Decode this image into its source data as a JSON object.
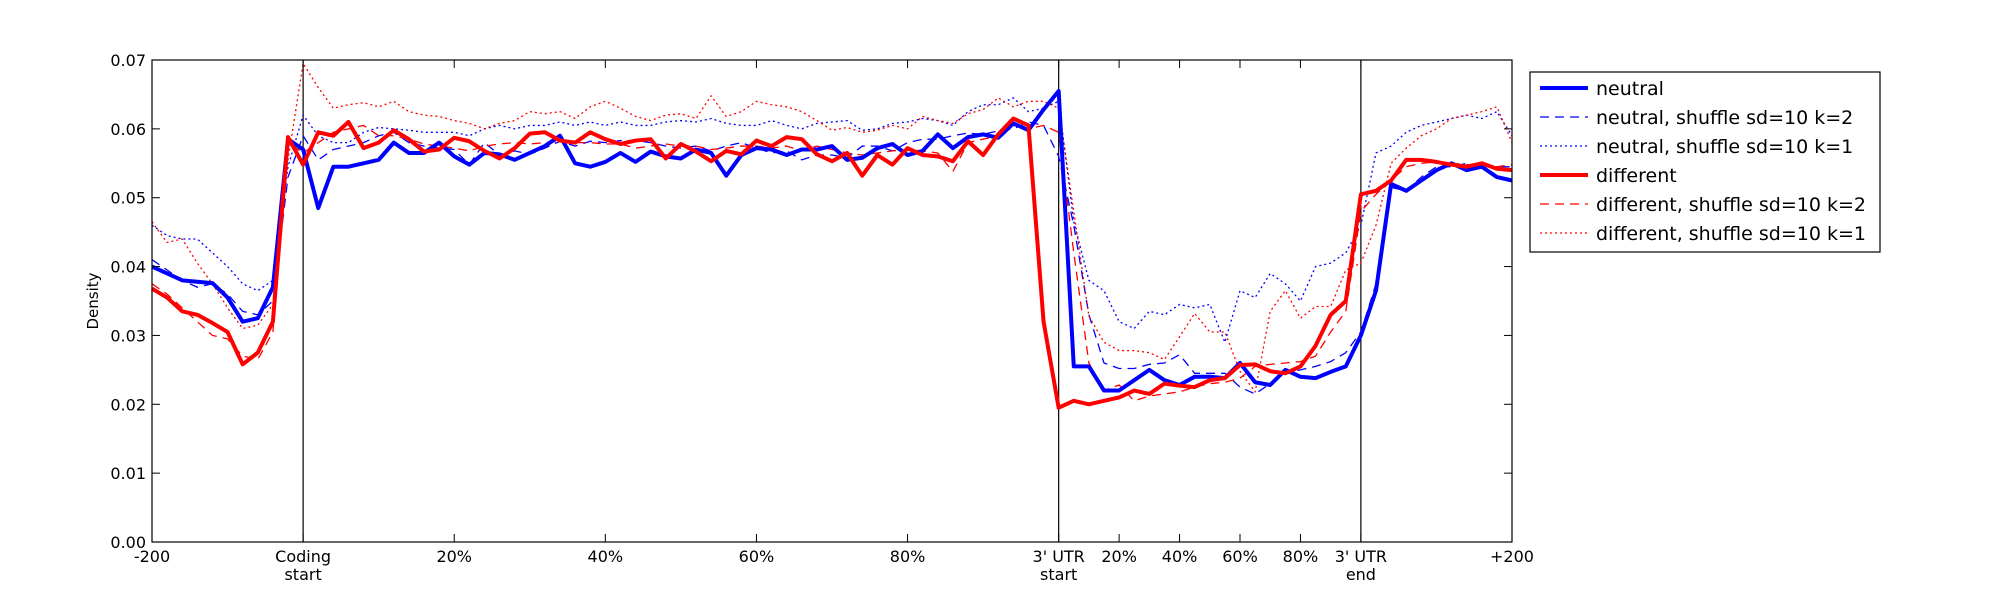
{
  "chart_data": {
    "type": "line",
    "title": "",
    "xlabel": "",
    "ylabel": "Density",
    "ylim": [
      0,
      0.07
    ],
    "y_ticks": [
      0.0,
      0.01,
      0.02,
      0.03,
      0.04,
      0.05,
      0.06,
      0.07
    ],
    "y_tick_labels": [
      "0.00",
      "0.01",
      "0.02",
      "0.03",
      "0.04",
      "0.05",
      "0.06",
      "0.07"
    ],
    "x_tick_labels": [
      {
        "label": "-200",
        "sub": "",
        "at": 0
      },
      {
        "label": "Coding",
        "sub": "start",
        "at": 10
      },
      {
        "label": "20%",
        "sub": "",
        "at": 20
      },
      {
        "label": "40%",
        "sub": "",
        "at": 30
      },
      {
        "label": "60%",
        "sub": "",
        "at": 40
      },
      {
        "label": "80%",
        "sub": "",
        "at": 50
      },
      {
        "label": "3' UTR",
        "sub": "start",
        "at": 60
      },
      {
        "label": "20%",
        "sub": "",
        "at": 64
      },
      {
        "label": "40%",
        "sub": "",
        "at": 68
      },
      {
        "label": "60%",
        "sub": "",
        "at": 72
      },
      {
        "label": "80%",
        "sub": "",
        "at": 76
      },
      {
        "label": "3' UTR",
        "sub": "end",
        "at": 80
      },
      {
        "label": "+200",
        "sub": "",
        "at": 90
      }
    ],
    "xlim": [
      0,
      90
    ],
    "region_boundaries": [
      10,
      60,
      80
    ],
    "legend_position": "outside-right",
    "series": [
      {
        "name": "neutral",
        "color": "#0000ff",
        "style": "solid",
        "y": [
          0.04,
          0.039,
          0.038,
          0.0378,
          0.0376,
          0.0355,
          0.032,
          0.0325,
          0.037,
          0.0585,
          0.057,
          0.0485,
          0.0545,
          0.0545,
          0.055,
          0.0555,
          0.058,
          0.0565,
          0.0565,
          0.058,
          0.056,
          0.0548,
          0.0565,
          0.0563,
          0.0555,
          0.0565,
          0.0575,
          0.059,
          0.055,
          0.0545,
          0.0552,
          0.0565,
          0.0552,
          0.0567,
          0.056,
          0.0557,
          0.057,
          0.0565,
          0.0532,
          0.0562,
          0.0572,
          0.057,
          0.0562,
          0.057,
          0.057,
          0.0575,
          0.0555,
          0.0558,
          0.0572,
          0.0578,
          0.0562,
          0.0568,
          0.0592,
          0.0572,
          0.0588,
          0.0592,
          0.0587,
          0.0608,
          0.0598,
          0.0628,
          0.0655,
          0.0255,
          0.0255,
          0.022,
          0.022,
          0.0235,
          0.025,
          0.0235,
          0.0228,
          0.024,
          0.024,
          0.0238,
          0.026,
          0.0232,
          0.0228,
          0.025,
          0.024,
          0.0238,
          0.0247,
          0.0255,
          0.03,
          0.0365,
          0.052,
          0.051,
          0.0525,
          0.054,
          0.055,
          0.054,
          0.0545,
          0.053,
          0.0525
        ]
      },
      {
        "name": "neutral, shuffle sd=10 k=2",
        "color": "#0000ff",
        "style": "dashed",
        "y": [
          0.041,
          0.0395,
          0.038,
          0.037,
          0.0375,
          0.036,
          0.0335,
          0.033,
          0.035,
          0.053,
          0.059,
          0.0555,
          0.057,
          0.0575,
          0.058,
          0.059,
          0.0595,
          0.058,
          0.0575,
          0.0572,
          0.057,
          0.0548,
          0.058,
          0.0562,
          0.0568,
          0.0563,
          0.0572,
          0.0582,
          0.0575,
          0.0582,
          0.058,
          0.0583,
          0.0583,
          0.058,
          0.0575,
          0.0572,
          0.0575,
          0.0568,
          0.0575,
          0.058,
          0.0572,
          0.0565,
          0.0568,
          0.0555,
          0.0562,
          0.0562,
          0.0558,
          0.0575,
          0.0575,
          0.0568,
          0.058,
          0.0585,
          0.0585,
          0.059,
          0.0594,
          0.0592,
          0.0597,
          0.06,
          0.061,
          0.0605,
          0.056,
          0.046,
          0.033,
          0.026,
          0.0252,
          0.0252,
          0.0258,
          0.026,
          0.0272,
          0.0245,
          0.0245,
          0.0245,
          0.0225,
          0.0215,
          0.023,
          0.0245,
          0.025,
          0.0255,
          0.0262,
          0.0275,
          0.0305,
          0.0375,
          0.0515,
          0.051,
          0.053,
          0.0545,
          0.0545,
          0.055,
          0.0545,
          0.0545,
          0.0545
        ]
      },
      {
        "name": "neutral, shuffle sd=10 k=1",
        "color": "#0000ff",
        "style": "dotted",
        "y": [
          0.046,
          0.0445,
          0.044,
          0.044,
          0.042,
          0.04,
          0.0375,
          0.0365,
          0.038,
          0.0545,
          0.062,
          0.059,
          0.058,
          0.058,
          0.0595,
          0.0602,
          0.06,
          0.0598,
          0.0595,
          0.0595,
          0.0595,
          0.059,
          0.06,
          0.0605,
          0.06,
          0.0605,
          0.0605,
          0.061,
          0.0605,
          0.061,
          0.0605,
          0.061,
          0.0605,
          0.0605,
          0.061,
          0.0612,
          0.061,
          0.0615,
          0.0608,
          0.0605,
          0.0605,
          0.0612,
          0.0605,
          0.06,
          0.0608,
          0.061,
          0.0612,
          0.0598,
          0.06,
          0.0608,
          0.061,
          0.0615,
          0.0612,
          0.0605,
          0.0625,
          0.0635,
          0.0635,
          0.0645,
          0.0625,
          0.063,
          0.064,
          0.0465,
          0.038,
          0.0365,
          0.032,
          0.031,
          0.0335,
          0.033,
          0.0345,
          0.034,
          0.0345,
          0.029,
          0.0365,
          0.0355,
          0.039,
          0.0375,
          0.035,
          0.04,
          0.0405,
          0.042,
          0.046,
          0.0565,
          0.0575,
          0.0595,
          0.0605,
          0.061,
          0.0615,
          0.062,
          0.0615,
          0.0625,
          0.059
        ]
      },
      {
        "name": "different",
        "color": "#ff0000",
        "style": "solid",
        "y": [
          0.0368,
          0.0355,
          0.0335,
          0.033,
          0.0318,
          0.0305,
          0.0258,
          0.0275,
          0.032,
          0.0588,
          0.0548,
          0.0595,
          0.059,
          0.061,
          0.0572,
          0.058,
          0.0598,
          0.0585,
          0.0567,
          0.057,
          0.0587,
          0.0582,
          0.0568,
          0.0557,
          0.0572,
          0.0593,
          0.0595,
          0.0583,
          0.058,
          0.0595,
          0.0585,
          0.0578,
          0.0583,
          0.0585,
          0.0557,
          0.0578,
          0.0567,
          0.0553,
          0.0568,
          0.0563,
          0.0583,
          0.0575,
          0.0588,
          0.0585,
          0.0563,
          0.0553,
          0.0565,
          0.0532,
          0.0562,
          0.0548,
          0.0572,
          0.0562,
          0.056,
          0.0553,
          0.0582,
          0.0562,
          0.0592,
          0.0615,
          0.0605,
          0.032,
          0.0195,
          0.0205,
          0.02,
          0.0205,
          0.021,
          0.022,
          0.0215,
          0.023,
          0.0227,
          0.0225,
          0.0235,
          0.0238,
          0.0257,
          0.0258,
          0.0248,
          0.0245,
          0.0255,
          0.0285,
          0.033,
          0.035,
          0.0505,
          0.051,
          0.0525,
          0.0555,
          0.0555,
          0.0552,
          0.0548,
          0.0545,
          0.055,
          0.0542,
          0.054
        ]
      },
      {
        "name": "different, shuffle sd=10 k=2",
        "color": "#ff0000",
        "style": "dashed",
        "y": [
          0.0375,
          0.036,
          0.034,
          0.032,
          0.03,
          0.0295,
          0.027,
          0.0265,
          0.0305,
          0.058,
          0.0565,
          0.058,
          0.0595,
          0.06,
          0.0605,
          0.059,
          0.059,
          0.0585,
          0.0578,
          0.0575,
          0.0572,
          0.0568,
          0.0575,
          0.0578,
          0.058,
          0.0578,
          0.058,
          0.0582,
          0.058,
          0.058,
          0.0578,
          0.0578,
          0.0572,
          0.0575,
          0.0578,
          0.0575,
          0.0575,
          0.057,
          0.0572,
          0.0575,
          0.0575,
          0.0572,
          0.0575,
          0.0568,
          0.0575,
          0.057,
          0.0565,
          0.0562,
          0.0565,
          0.0568,
          0.057,
          0.0568,
          0.0565,
          0.0538,
          0.058,
          0.0585,
          0.059,
          0.0605,
          0.06,
          0.0605,
          0.0595,
          0.042,
          0.026,
          0.022,
          0.0228,
          0.0205,
          0.0212,
          0.0215,
          0.0218,
          0.0225,
          0.023,
          0.0232,
          0.0238,
          0.0255,
          0.0258,
          0.026,
          0.0262,
          0.027,
          0.0305,
          0.0335,
          0.048,
          0.0505,
          0.0525,
          0.0545,
          0.055,
          0.0552,
          0.055,
          0.0548,
          0.0548,
          0.0545,
          0.0548
        ]
      },
      {
        "name": "different, shuffle sd=10 k=1",
        "color": "#ff0000",
        "style": "dotted",
        "y": [
          0.0465,
          0.0435,
          0.044,
          0.0405,
          0.0375,
          0.034,
          0.031,
          0.0315,
          0.0345,
          0.0555,
          0.0695,
          0.066,
          0.063,
          0.0635,
          0.0638,
          0.0632,
          0.064,
          0.0625,
          0.062,
          0.0618,
          0.0612,
          0.0608,
          0.06,
          0.0608,
          0.0612,
          0.0625,
          0.0622,
          0.0625,
          0.0615,
          0.0632,
          0.064,
          0.063,
          0.0618,
          0.0612,
          0.062,
          0.0622,
          0.0615,
          0.0648,
          0.0618,
          0.0625,
          0.064,
          0.0635,
          0.0632,
          0.0625,
          0.0612,
          0.0598,
          0.0602,
          0.0595,
          0.0598,
          0.0605,
          0.06,
          0.0618,
          0.0612,
          0.0608,
          0.0622,
          0.0628,
          0.0645,
          0.0632,
          0.064,
          0.064,
          0.063,
          0.048,
          0.0328,
          0.029,
          0.0278,
          0.0278,
          0.0275,
          0.0265,
          0.0298,
          0.0332,
          0.0305,
          0.0305,
          0.0248,
          0.0218,
          0.0335,
          0.0365,
          0.0325,
          0.0342,
          0.0342,
          0.0395,
          0.0405,
          0.046,
          0.055,
          0.0572,
          0.059,
          0.06,
          0.0615,
          0.062,
          0.0625,
          0.0632,
          0.058
        ]
      }
    ]
  }
}
